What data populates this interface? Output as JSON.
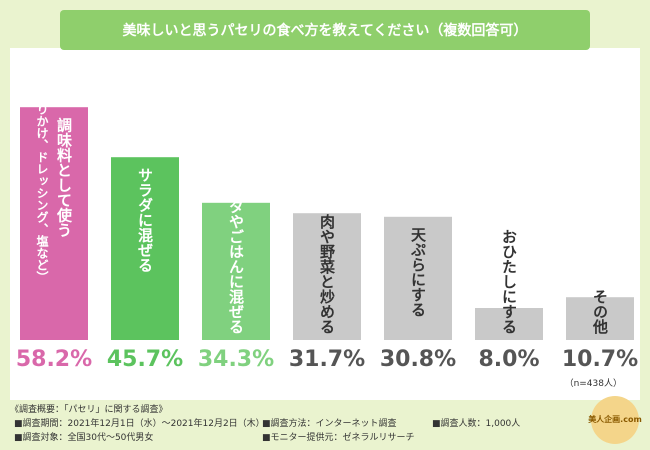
{
  "chart_data": {
    "type": "bar",
    "title": "美味しいと思うパセリの食べ方を教えてください（複数回答可）",
    "categories": [
      [
        "調味料として使う",
        "（ふりかけ、ドレッシング、塩など）"
      ],
      [
        "サラダに混ぜる"
      ],
      [
        "パスタやごはんに混ぜる"
      ],
      [
        "肉や野菜と炒める"
      ],
      [
        "天ぷらにする"
      ],
      [
        "おひたしにする"
      ],
      [
        "その他"
      ]
    ],
    "values": [
      58.2,
      45.7,
      34.3,
      31.7,
      30.8,
      8.0,
      10.7
    ],
    "value_labels": [
      "58.2%",
      "45.7%",
      "34.3%",
      "31.7%",
      "30.8%",
      "8.0%",
      "10.7%"
    ],
    "colors": [
      "#d968aa",
      "#5cc35e",
      "#80d17f",
      "#c9c9c9",
      "#c9c9c9",
      "#c9c9c9",
      "#c9c9c9"
    ],
    "label_colors": [
      "#d968aa",
      "#5cc35e",
      "#80d17f",
      "#555555",
      "#555555",
      "#555555",
      "#555555"
    ],
    "sample_note": "（n=438人）",
    "footer": {
      "heading": "《調査概要：「パセリ」に関する調査》",
      "items": [
        "■調査期間：2021年12月1日（水）～2021年12月2日（木）",
        "■調査方法：インターネット調査",
        "■調査人数：1,000人",
        "■調査対象：全国30代～50代男女",
        "■モニター提供元：ゼネラルリサーチ"
      ],
      "logo": "美人企画.com"
    }
  }
}
